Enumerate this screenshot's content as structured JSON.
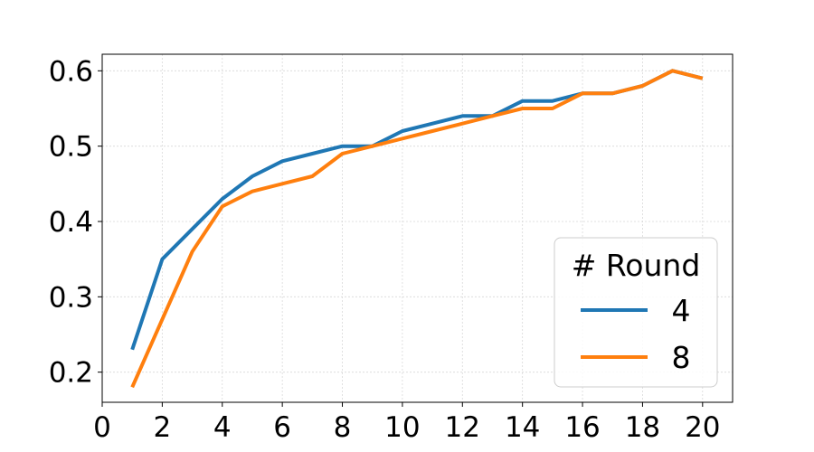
{
  "chart_data": {
    "type": "line",
    "title": "",
    "xlabel": "",
    "ylabel": "",
    "xlim": [
      0,
      21
    ],
    "ylim": [
      0.16,
      0.622
    ],
    "xticks": [
      0,
      2,
      4,
      6,
      8,
      10,
      12,
      14,
      16,
      18,
      20
    ],
    "yticks": [
      0.2,
      0.3,
      0.4,
      0.5,
      0.6
    ],
    "xtick_labels": [
      "0",
      "2",
      "4",
      "6",
      "8",
      "10",
      "12",
      "14",
      "16",
      "18",
      "20"
    ],
    "ytick_labels": [
      "0.2",
      "0.3",
      "0.4",
      "0.5",
      "0.6"
    ],
    "grid": true,
    "legend": {
      "title": "# Round",
      "placement": "lower-right"
    },
    "x": [
      1,
      2,
      3,
      4,
      5,
      6,
      7,
      8,
      9,
      10,
      11,
      12,
      13,
      14,
      15,
      16,
      17,
      18,
      19,
      20
    ],
    "series": [
      {
        "name": "4",
        "color": "#1f77b4",
        "values": [
          0.23,
          0.35,
          0.39,
          0.43,
          0.46,
          0.48,
          0.49,
          0.5,
          0.5,
          0.52,
          0.53,
          0.54,
          0.54,
          0.56,
          0.56,
          0.57,
          0.57,
          0.58,
          0.6,
          0.59
        ]
      },
      {
        "name": "8",
        "color": "#ff7f0e",
        "values": [
          0.18,
          0.27,
          0.36,
          0.42,
          0.44,
          0.45,
          0.46,
          0.49,
          0.5,
          0.51,
          0.52,
          0.53,
          0.54,
          0.55,
          0.55,
          0.57,
          0.57,
          0.58,
          0.6,
          0.59
        ]
      }
    ]
  }
}
